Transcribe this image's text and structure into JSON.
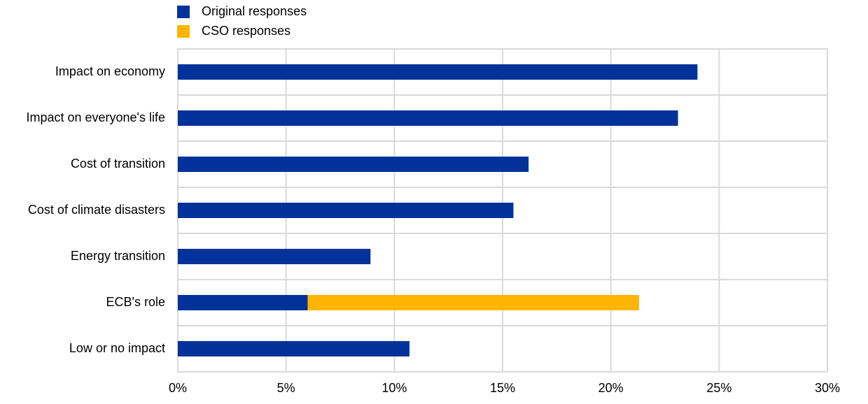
{
  "chart_data": {
    "type": "stacked_barh",
    "categories": [
      "Impact on economy",
      "Impact on everyone's life",
      "Cost of transition",
      "Cost of climate disasters",
      "Energy transition",
      "ECB's role",
      "Low or no impact"
    ],
    "series": [
      {
        "name": "Original responses",
        "color": "#003299",
        "values": [
          24.0,
          23.1,
          16.2,
          15.5,
          8.9,
          6.0,
          10.7
        ]
      },
      {
        "name": "CSO responses",
        "color": "#ffb400",
        "values": [
          null,
          null,
          null,
          null,
          null,
          15.3,
          null
        ]
      }
    ],
    "xlim": [
      0,
      30
    ],
    "xticks": [
      {
        "value": 0,
        "label": "0%"
      },
      {
        "value": 5,
        "label": "5%"
      },
      {
        "value": 10,
        "label": "10%"
      },
      {
        "value": 15,
        "label": "15%"
      },
      {
        "value": 20,
        "label": "20%"
      },
      {
        "value": 25,
        "label": "25%"
      },
      {
        "value": 30,
        "label": "30%"
      }
    ],
    "grid": true,
    "legend": "top-left"
  }
}
